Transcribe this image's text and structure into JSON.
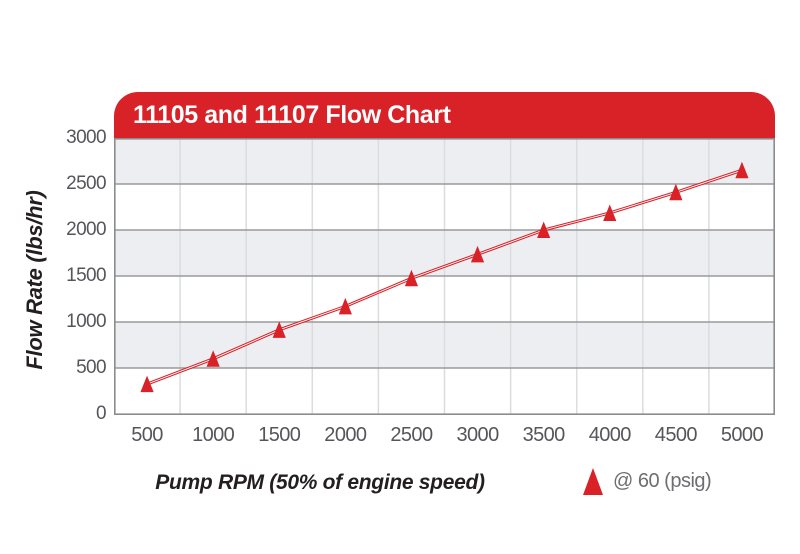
{
  "title": "11105 and 11107 Flow Chart",
  "colors": {
    "red": "#D92128",
    "band_gray": "#EDEEF1",
    "band_white": "#FFFFFF",
    "hgrid": "#9A9A9C",
    "vgrid": "#DBDCDE",
    "border": "#8A8C8E",
    "tick_text": "#55565A",
    "legend_text": "#6D6E71",
    "axis_title_text": "#231F20",
    "title_text": "#FFFFFF"
  },
  "legend": {
    "marker_icon": "red-triangle",
    "label": "@ 60 (psig)"
  },
  "chart_data": {
    "type": "line",
    "title": "11105 and 11107 Flow Chart",
    "xlabel": "Pump RPM (50% of engine speed)",
    "ylabel": "Flow Rate (lbs/hr)",
    "x": [
      500,
      1000,
      1500,
      2000,
      2500,
      3000,
      3500,
      4000,
      4500,
      5000
    ],
    "series": [
      {
        "name": "@ 60 (psig)",
        "marker": "triangle",
        "color": "#D92128",
        "values": [
          325,
          600,
          915,
          1170,
          1475,
          1735,
          2000,
          2185,
          2410,
          2650
        ]
      }
    ],
    "xticks": [
      500,
      1000,
      1500,
      2000,
      2500,
      3000,
      3500,
      4000,
      4500,
      5000
    ],
    "yticks": [
      0,
      500,
      1000,
      1500,
      2000,
      2500,
      3000
    ],
    "xlim": [
      250,
      5250
    ],
    "ylim": [
      0,
      3000
    ],
    "grid": "alternating horizontal gray/white bands, gray row lines, light column separators",
    "legend_position": "bottom-right below x axis"
  }
}
